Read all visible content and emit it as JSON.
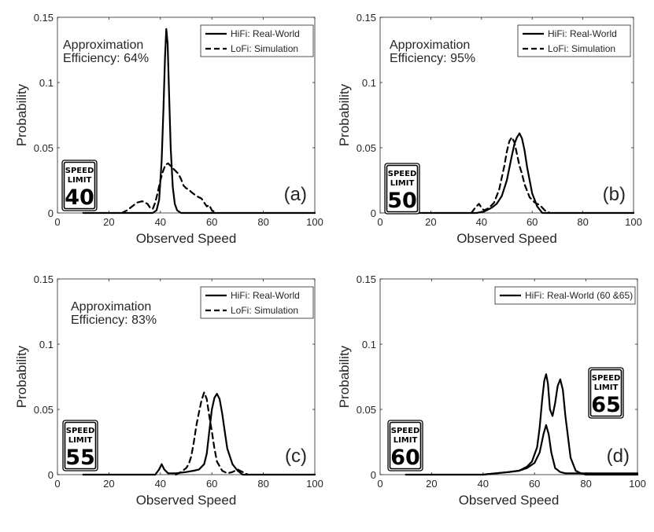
{
  "colors": {
    "axis": "#262626",
    "line": "#000000",
    "background": "#ffffff"
  },
  "chart_data": [
    {
      "type": "line",
      "panel_label": "(a)",
      "annotation": [
        "Approximation",
        "Efficiency: 64%"
      ],
      "xlabel": "Observed Speed",
      "ylabel": "Probability",
      "xlim": [
        0,
        100
      ],
      "ylim": [
        0,
        0.15
      ],
      "xticks": [
        "0",
        "20",
        "40",
        "60",
        "80",
        "100"
      ],
      "yticks": [
        "0",
        "0.05",
        "0.1",
        "0.15"
      ],
      "legend_position": "top-right",
      "sign": {
        "top": "SPEED",
        "middle": "LIMIT",
        "number": "40"
      },
      "series": [
        {
          "name": "HiFi: Real-World",
          "style": "solid",
          "x": [
            10,
            37,
            38.5,
            39.5,
            40.5,
            41.2,
            41.8,
            42.3,
            42.8,
            43.4,
            44,
            44.8,
            45.6,
            46.5,
            48,
            60,
            100
          ],
          "y": [
            0,
            0,
            0.002,
            0.01,
            0.04,
            0.08,
            0.12,
            0.141,
            0.13,
            0.09,
            0.05,
            0.02,
            0.007,
            0.002,
            0,
            0,
            0
          ]
        },
        {
          "name": "LoFi: Simulation",
          "style": "dashed",
          "x": [
            25,
            27,
            29,
            31,
            33,
            35,
            36,
            37,
            38,
            39,
            40,
            41,
            42,
            43,
            44,
            45,
            46,
            47,
            48,
            49,
            50,
            51,
            52,
            54,
            56,
            58,
            59,
            60,
            62
          ],
          "y": [
            0,
            0.002,
            0.005,
            0.008,
            0.009,
            0.007,
            0.004,
            0.003,
            0.008,
            0.016,
            0.025,
            0.032,
            0.037,
            0.038,
            0.036,
            0.034,
            0.032,
            0.03,
            0.026,
            0.021,
            0.019,
            0.018,
            0.016,
            0.013,
            0.011,
            0.005,
            0.006,
            0.002,
            0
          ]
        }
      ]
    },
    {
      "type": "line",
      "panel_label": "(b)",
      "annotation": [
        "Approximation",
        "Efficiency: 95%"
      ],
      "xlabel": "Observed Speed",
      "ylabel": "Probability",
      "xlim": [
        0,
        100
      ],
      "ylim": [
        0,
        0.15
      ],
      "xticks": [
        "0",
        "20",
        "40",
        "60",
        "80",
        "100"
      ],
      "yticks": [
        "0",
        "0.05",
        "0.1",
        "0.15"
      ],
      "legend_position": "top-right",
      "sign": {
        "top": "SPEED",
        "middle": "LIMIT",
        "number": "50"
      },
      "series": [
        {
          "name": "HiFi: Real-World",
          "style": "solid",
          "x": [
            10,
            38,
            41,
            44,
            46,
            48,
            50,
            52,
            53,
            54,
            55,
            56,
            57,
            58,
            60,
            62,
            64,
            100
          ],
          "y": [
            0,
            0,
            0.001,
            0.004,
            0.007,
            0.013,
            0.025,
            0.044,
            0.053,
            0.058,
            0.061,
            0.057,
            0.048,
            0.035,
            0.015,
            0.005,
            0,
            0
          ]
        },
        {
          "name": "LoFi: Simulation",
          "style": "dashed",
          "x": [
            36,
            37.5,
            39,
            40,
            41,
            43,
            45,
            47,
            49,
            50,
            51,
            52,
            53,
            54,
            55,
            56,
            57,
            59,
            61,
            62,
            63,
            65,
            67
          ],
          "y": [
            0,
            0.004,
            0.007,
            0.004,
            0.002,
            0.004,
            0.008,
            0.018,
            0.036,
            0.047,
            0.055,
            0.058,
            0.054,
            0.045,
            0.036,
            0.03,
            0.022,
            0.012,
            0.008,
            0.007,
            0.006,
            0.002,
            0
          ]
        }
      ]
    },
    {
      "type": "line",
      "panel_label": "(c)",
      "annotation": [
        "Approximation",
        "Efficiency: 83%"
      ],
      "xlabel": "Observed Speed",
      "ylabel": "Probability",
      "xlim": [
        0,
        100
      ],
      "ylim": [
        0,
        0.15
      ],
      "xticks": [
        "0",
        "20",
        "40",
        "60",
        "80",
        "100"
      ],
      "yticks": [
        "0",
        "0.05",
        "0.1",
        "0.15"
      ],
      "legend_position": "top-right",
      "sign": {
        "top": "SPEED",
        "middle": "LIMIT",
        "number": "55"
      },
      "series": [
        {
          "name": "HiFi: Real-World",
          "style": "solid",
          "x": [
            10,
            38,
            39.5,
            40.5,
            41.5,
            43,
            46,
            50,
            53,
            55,
            57,
            58,
            59,
            60,
            61,
            62,
            63,
            64,
            65,
            66,
            68,
            70,
            72,
            100
          ],
          "y": [
            0,
            0,
            0.004,
            0.008,
            0.004,
            0.001,
            0.001,
            0.002,
            0.003,
            0.004,
            0.008,
            0.016,
            0.033,
            0.05,
            0.059,
            0.062,
            0.058,
            0.047,
            0.033,
            0.02,
            0.008,
            0.003,
            0,
            0
          ]
        },
        {
          "name": "LoFi: Simulation",
          "style": "dashed",
          "x": [
            46,
            48,
            50,
            51,
            52,
            53,
            54,
            55,
            56,
            57,
            58,
            59,
            60,
            61,
            62,
            64,
            66,
            68,
            70,
            72,
            74
          ],
          "y": [
            0,
            0.002,
            0.005,
            0.008,
            0.014,
            0.025,
            0.038,
            0.048,
            0.057,
            0.063,
            0.058,
            0.045,
            0.033,
            0.02,
            0.01,
            0.003,
            0.001,
            0.002,
            0.004,
            0.002,
            0
          ]
        }
      ]
    },
    {
      "type": "line",
      "panel_label": "(d)",
      "annotation": [],
      "xlabel": "Observed Speed",
      "ylabel": "Probability",
      "xlim": [
        0,
        100
      ],
      "ylim": [
        0,
        0.15
      ],
      "xticks": [
        "0",
        "20",
        "40",
        "60",
        "80",
        "100"
      ],
      "yticks": [
        "0",
        "0.05",
        "0.1",
        "0.15"
      ],
      "legend_position": "top-right",
      "sign": {
        "top": "SPEED",
        "middle": "LIMIT",
        "number": "60"
      },
      "sign2": {
        "top": "SPEED",
        "middle": "LIMIT",
        "number": "65"
      },
      "series": [
        {
          "name": "HiFi: Real-World (60 &65)",
          "style": "solid",
          "x": [
            10,
            40,
            45,
            50,
            54,
            57,
            59,
            61,
            62,
            63,
            63.8,
            64.5,
            65.2,
            66,
            67,
            68,
            69,
            70,
            71,
            72,
            74,
            76,
            78,
            80,
            100
          ],
          "y": [
            0,
            0,
            0.001,
            0.002,
            0.003,
            0.006,
            0.01,
            0.021,
            0.036,
            0.058,
            0.072,
            0.077,
            0.07,
            0.05,
            0.045,
            0.055,
            0.068,
            0.073,
            0.065,
            0.045,
            0.013,
            0.003,
            0.001,
            0,
            0
          ]
        },
        {
          "name": "",
          "style": "solid",
          "x": [
            40,
            45,
            50,
            54,
            57,
            60,
            62,
            63.5,
            64.5,
            65.5,
            66.5,
            68,
            70,
            72,
            100
          ],
          "y": [
            0,
            0.001,
            0.002,
            0.003,
            0.005,
            0.009,
            0.017,
            0.031,
            0.038,
            0.031,
            0.017,
            0.005,
            0.002,
            0.001,
            0.001
          ]
        }
      ]
    }
  ]
}
